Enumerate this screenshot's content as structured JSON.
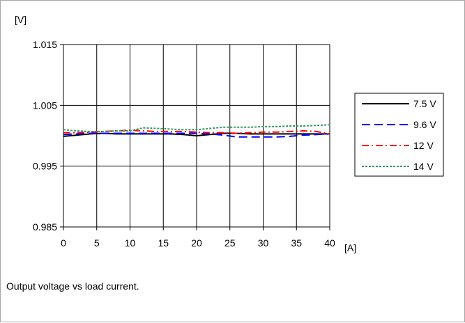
{
  "caption": "Output voltage vs load current.",
  "chart_data": {
    "type": "line",
    "title": "",
    "xlabel": "[A]",
    "ylabel": "[V]",
    "x": [
      0,
      2,
      4,
      6,
      8,
      10,
      12,
      14,
      16,
      18,
      20,
      22,
      24,
      26,
      28,
      30,
      32,
      34,
      36,
      38,
      40
    ],
    "xlim": [
      0,
      40
    ],
    "ylim": [
      0.985,
      1.015
    ],
    "xticks": [
      "0",
      "5",
      "10",
      "15",
      "20",
      "25",
      "30",
      "35",
      "40"
    ],
    "yticks": [
      "0.985",
      "0.995",
      "1.005",
      "1.015"
    ],
    "grid": true,
    "legend_position": "right",
    "series": [
      {
        "name": "7.5 V",
        "color": "#000000",
        "dash": "solid",
        "values": [
          0.9999,
          1.0001,
          1.0003,
          1.0004,
          1.0003,
          1.0003,
          1.0003,
          1.0003,
          1.0003,
          1.0002,
          1.0,
          1.0002,
          1.0004,
          1.0004,
          1.0003,
          1.0003,
          1.0003,
          1.0003,
          1.0003,
          1.0003,
          1.0003
        ]
      },
      {
        "name": "9.6 V",
        "color": "#0000ff",
        "dash": "long-dash",
        "values": [
          1.0002,
          1.0003,
          1.0004,
          1.0004,
          1.0004,
          1.0004,
          1.0004,
          1.0004,
          1.0004,
          1.0004,
          1.0004,
          1.0003,
          1.0001,
          0.9998,
          0.9998,
          0.9998,
          0.9998,
          0.9999,
          1.0001,
          1.0002,
          1.0003
        ]
      },
      {
        "name": "12 V",
        "color": "#ff0000",
        "dash": "dash-dot",
        "values": [
          1.0005,
          1.0005,
          1.0006,
          1.0007,
          1.0008,
          1.0009,
          1.0008,
          1.0007,
          1.0007,
          1.0007,
          1.0006,
          1.0005,
          1.0005,
          1.0004,
          1.0005,
          1.0006,
          1.0006,
          1.0007,
          1.0008,
          1.0007,
          1.0003
        ]
      },
      {
        "name": "14 V",
        "color": "#339966",
        "dash": "dotted",
        "values": [
          1.001,
          1.0008,
          1.0007,
          1.0007,
          1.0008,
          1.0008,
          1.0013,
          1.0012,
          1.0011,
          1.001,
          1.001,
          1.0012,
          1.0014,
          1.0014,
          1.0014,
          1.0015,
          1.0015,
          1.0016,
          1.0016,
          1.0017,
          1.0018
        ]
      }
    ]
  }
}
